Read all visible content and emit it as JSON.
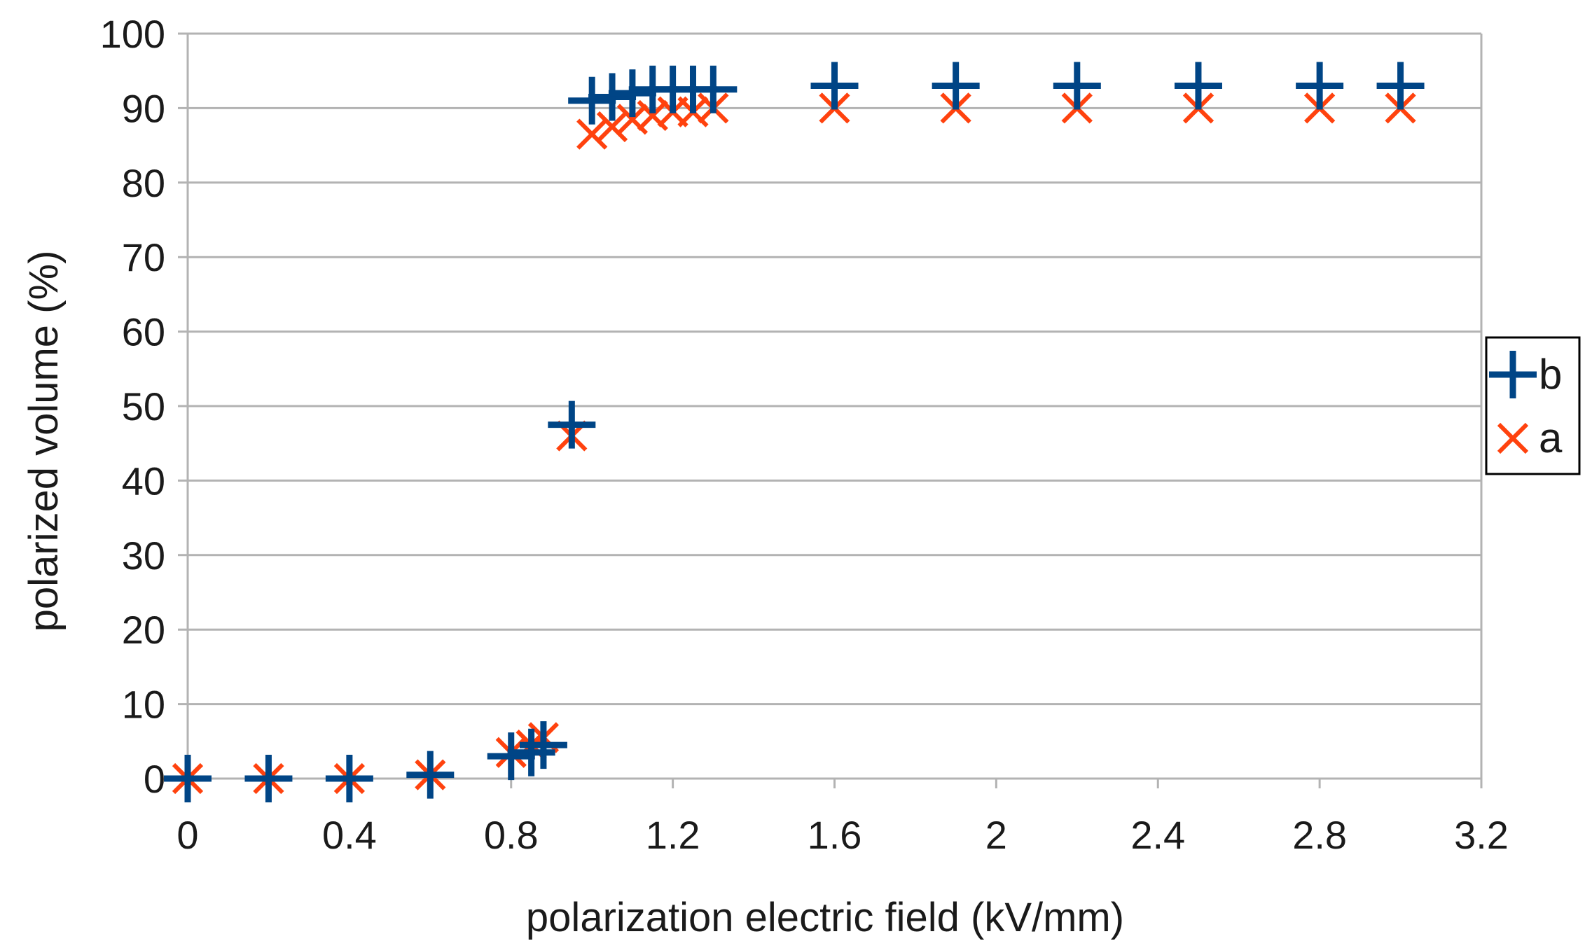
{
  "chart_data": {
    "type": "scatter",
    "title": "",
    "xlabel": "polarization electric field (kV/mm)",
    "ylabel": "polarized volume (%)",
    "xlim": [
      0,
      3.2
    ],
    "ylim": [
      0,
      100
    ],
    "xticks": [
      0,
      0.4,
      0.8,
      1.2,
      1.6,
      2,
      2.4,
      2.8,
      3.2
    ],
    "xtick_labels": [
      "0",
      "0.4",
      "0.8",
      "1.2",
      "1.6",
      "2",
      "2.4",
      "2.8",
      "3.2"
    ],
    "yticks": [
      0,
      10,
      20,
      30,
      40,
      50,
      60,
      70,
      80,
      90,
      100
    ],
    "ytick_labels": [
      "0",
      "10",
      "20",
      "30",
      "40",
      "50",
      "60",
      "70",
      "80",
      "90",
      "100"
    ],
    "grid": "horizontal",
    "legend_position": "right",
    "series": [
      {
        "name": "b",
        "marker": "plus",
        "color": "#004586",
        "x": [
          0,
          0.2,
          0.4,
          0.6,
          0.8,
          0.85,
          0.88,
          0.95,
          1.0,
          1.05,
          1.1,
          1.15,
          1.2,
          1.25,
          1.3,
          1.6,
          1.9,
          2.2,
          2.5,
          2.8,
          3.0
        ],
        "y": [
          0,
          0,
          0,
          0.5,
          3,
          3.5,
          4.5,
          47.5,
          91,
          91.5,
          92,
          92.5,
          92.5,
          92.5,
          92.5,
          93,
          93,
          93,
          93,
          93,
          93
        ]
      },
      {
        "name": "a",
        "marker": "x",
        "color": "#ff420e",
        "x": [
          0,
          0.2,
          0.4,
          0.6,
          0.8,
          0.85,
          0.88,
          0.95,
          1.0,
          1.05,
          1.1,
          1.15,
          1.2,
          1.25,
          1.3,
          1.6,
          1.9,
          2.2,
          2.5,
          2.8,
          3.0
        ],
        "y": [
          0,
          0,
          0,
          0.5,
          3.5,
          4.5,
          5.5,
          46,
          86.5,
          87.5,
          88.5,
          89,
          89.5,
          89.5,
          90,
          90,
          90,
          90,
          90,
          90,
          90
        ]
      }
    ]
  }
}
